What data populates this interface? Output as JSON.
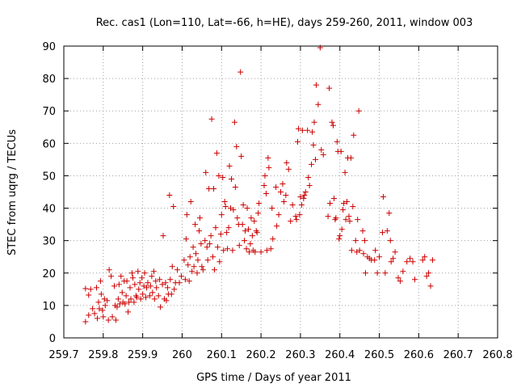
{
  "chart_data": {
    "type": "scatter",
    "title": "Rec. cas1 (Lon=110, Lat=-66, h=HE), days 259-260, 2011, window 003",
    "xlabel": "GPS time / Days of year 2011",
    "ylabel": "STEC from uqrg / TECUs",
    "xlim": [
      259.7,
      260.8
    ],
    "ylim": [
      0,
      90
    ],
    "xticks": [
      "259.7",
      "259.8",
      "259.9",
      "260",
      "260.1",
      "260.2",
      "260.3",
      "260.4",
      "260.5",
      "260.6",
      "260.7",
      "260.8"
    ],
    "yticks": [
      "0",
      "10",
      "20",
      "30",
      "40",
      "50",
      "60",
      "70",
      "80",
      "90"
    ],
    "grid": true,
    "marker": "plus",
    "color": "#cc0000",
    "points": [
      [
        259.755,
        15.2
      ],
      [
        259.755,
        5.0
      ],
      [
        259.763,
        13.2
      ],
      [
        259.763,
        7.0
      ],
      [
        259.768,
        15.0
      ],
      [
        259.773,
        9.0
      ],
      [
        259.778,
        7.5
      ],
      [
        259.783,
        15.5
      ],
      [
        259.785,
        6.0
      ],
      [
        259.788,
        11.0
      ],
      [
        259.79,
        9.0
      ],
      [
        259.793,
        17.5
      ],
      [
        259.795,
        13.5
      ],
      [
        259.798,
        8.5
      ],
      [
        259.8,
        6.5
      ],
      [
        259.803,
        12.0
      ],
      [
        259.805,
        10.0
      ],
      [
        259.81,
        11.5
      ],
      [
        259.813,
        5.5
      ],
      [
        259.815,
        21.0
      ],
      [
        259.82,
        19.0
      ],
      [
        259.823,
        6.5
      ],
      [
        259.828,
        16.0
      ],
      [
        259.83,
        10.0
      ],
      [
        259.832,
        5.5
      ],
      [
        259.835,
        9.5
      ],
      [
        259.838,
        12.0
      ],
      [
        259.84,
        16.5
      ],
      [
        259.842,
        10.5
      ],
      [
        259.845,
        19.0
      ],
      [
        259.848,
        14.0
      ],
      [
        259.85,
        11.0
      ],
      [
        259.853,
        17.5
      ],
      [
        259.855,
        10.5
      ],
      [
        259.858,
        13.0
      ],
      [
        259.86,
        17.5
      ],
      [
        259.863,
        8.0
      ],
      [
        259.865,
        11.0
      ],
      [
        259.868,
        15.5
      ],
      [
        259.87,
        12.0
      ],
      [
        259.873,
        20.0
      ],
      [
        259.875,
        18.5
      ],
      [
        259.878,
        11.0
      ],
      [
        259.88,
        16.5
      ],
      [
        259.883,
        13.0
      ],
      [
        259.885,
        12.5
      ],
      [
        259.888,
        20.5
      ],
      [
        259.89,
        15.0
      ],
      [
        259.893,
        17.0
      ],
      [
        259.895,
        12.0
      ],
      [
        259.898,
        18.5
      ],
      [
        259.9,
        13.5
      ],
      [
        259.903,
        16.0
      ],
      [
        259.905,
        20.0
      ],
      [
        259.908,
        12.5
      ],
      [
        259.91,
        15.5
      ],
      [
        259.913,
        17.0
      ],
      [
        259.918,
        13.0
      ],
      [
        259.92,
        16.0
      ],
      [
        259.923,
        19.0
      ],
      [
        259.925,
        14.0
      ],
      [
        259.928,
        20.5
      ],
      [
        259.93,
        12.0
      ],
      [
        259.933,
        17.5
      ],
      [
        259.935,
        15.5
      ],
      [
        259.94,
        13.0
      ],
      [
        259.943,
        18.0
      ],
      [
        259.945,
        9.5
      ],
      [
        259.95,
        16.5
      ],
      [
        259.952,
        31.5
      ],
      [
        259.955,
        12.0
      ],
      [
        259.958,
        17.0
      ],
      [
        259.96,
        11.5
      ],
      [
        259.963,
        15.5
      ],
      [
        259.965,
        13.5
      ],
      [
        259.968,
        44.0
      ],
      [
        259.97,
        18.0
      ],
      [
        259.973,
        13.5
      ],
      [
        259.975,
        22.0
      ],
      [
        259.978,
        40.5
      ],
      [
        259.98,
        15.0
      ],
      [
        259.983,
        17.0
      ],
      [
        259.988,
        21.0
      ],
      [
        259.993,
        17.0
      ],
      [
        259.998,
        19.0
      ],
      [
        260.005,
        24.0
      ],
      [
        260.008,
        18.0
      ],
      [
        260.01,
        30.5
      ],
      [
        260.012,
        38.0
      ],
      [
        260.015,
        22.5
      ],
      [
        260.018,
        17.5
      ],
      [
        260.02,
        25.0
      ],
      [
        260.022,
        42.0
      ],
      [
        260.025,
        20.5
      ],
      [
        260.028,
        28.0
      ],
      [
        260.03,
        22.0
      ],
      [
        260.033,
        35.0
      ],
      [
        260.035,
        26.0
      ],
      [
        260.038,
        20.0
      ],
      [
        260.04,
        24.0
      ],
      [
        260.043,
        33.0
      ],
      [
        260.045,
        37.0
      ],
      [
        260.048,
        29.0
      ],
      [
        260.05,
        22.0
      ],
      [
        260.053,
        21.0
      ],
      [
        260.058,
        30.0
      ],
      [
        260.06,
        51.0
      ],
      [
        260.063,
        28.0
      ],
      [
        260.065,
        24.0
      ],
      [
        260.068,
        46.0
      ],
      [
        260.07,
        29.0
      ],
      [
        260.073,
        31.5
      ],
      [
        260.075,
        67.5
      ],
      [
        260.078,
        25.0
      ],
      [
        260.08,
        46.0
      ],
      [
        260.082,
        21.0
      ],
      [
        260.085,
        34.0
      ],
      [
        260.088,
        57.0
      ],
      [
        260.09,
        28.0
      ],
      [
        260.093,
        50.0
      ],
      [
        260.095,
        23.5
      ],
      [
        260.098,
        32.0
      ],
      [
        260.1,
        38.0
      ],
      [
        260.103,
        49.5
      ],
      [
        260.105,
        27.0
      ],
      [
        260.108,
        42.0
      ],
      [
        260.11,
        40.5
      ],
      [
        260.113,
        32.5
      ],
      [
        260.115,
        27.5
      ],
      [
        260.118,
        34.0
      ],
      [
        260.12,
        53.0
      ],
      [
        260.123,
        40.0
      ],
      [
        260.125,
        49.0
      ],
      [
        260.128,
        27.0
      ],
      [
        260.13,
        39.5
      ],
      [
        260.133,
        66.5
      ],
      [
        260.135,
        46.5
      ],
      [
        260.138,
        59.0
      ],
      [
        260.14,
        37.0
      ],
      [
        260.143,
        35.0
      ],
      [
        260.145,
        28.5
      ],
      [
        260.148,
        82.0
      ],
      [
        260.15,
        56.0
      ],
      [
        260.153,
        35.0
      ],
      [
        260.155,
        41.0
      ],
      [
        260.158,
        30.0
      ],
      [
        260.16,
        33.0
      ],
      [
        260.163,
        27.5
      ],
      [
        260.165,
        40.0
      ],
      [
        260.168,
        33.5
      ],
      [
        260.17,
        26.5
      ],
      [
        260.173,
        29.0
      ],
      [
        260.175,
        37.0
      ],
      [
        260.178,
        31.5
      ],
      [
        260.18,
        27.0
      ],
      [
        260.183,
        36.0
      ],
      [
        260.185,
        26.5
      ],
      [
        260.188,
        33.0
      ],
      [
        260.19,
        32.5
      ],
      [
        260.193,
        38.5
      ],
      [
        260.195,
        41.5
      ],
      [
        260.2,
        26.5
      ],
      [
        260.208,
        47.0
      ],
      [
        260.21,
        50.0
      ],
      [
        260.213,
        44.5
      ],
      [
        260.215,
        27.0
      ],
      [
        260.218,
        55.5
      ],
      [
        260.22,
        52.5
      ],
      [
        260.225,
        27.5
      ],
      [
        260.228,
        40.0
      ],
      [
        260.23,
        30.5
      ],
      [
        260.238,
        46.5
      ],
      [
        260.24,
        34.5
      ],
      [
        260.245,
        38.0
      ],
      [
        260.25,
        45.0
      ],
      [
        260.255,
        47.5
      ],
      [
        260.258,
        42.0
      ],
      [
        260.263,
        44.0
      ],
      [
        260.265,
        54.0
      ],
      [
        260.27,
        52.0
      ],
      [
        260.275,
        36.0
      ],
      [
        260.28,
        41.0
      ],
      [
        260.288,
        37.5
      ],
      [
        260.29,
        36.5
      ],
      [
        260.293,
        60.5
      ],
      [
        260.295,
        64.5
      ],
      [
        260.298,
        38.0
      ],
      [
        260.3,
        43.5
      ],
      [
        260.303,
        41.0
      ],
      [
        260.305,
        64.0
      ],
      [
        260.308,
        43.0
      ],
      [
        260.31,
        44.0
      ],
      [
        260.313,
        45.0
      ],
      [
        260.318,
        64.0
      ],
      [
        260.32,
        49.5
      ],
      [
        260.323,
        47.0
      ],
      [
        260.328,
        53.5
      ],
      [
        260.33,
        63.5
      ],
      [
        260.333,
        59.5
      ],
      [
        260.335,
        66.5
      ],
      [
        260.338,
        55.0
      ],
      [
        260.34,
        78.0
      ],
      [
        260.345,
        72.0
      ],
      [
        260.35,
        89.5
      ],
      [
        260.353,
        58.0
      ],
      [
        260.358,
        56.5
      ],
      [
        260.37,
        37.5
      ],
      [
        260.373,
        77.0
      ],
      [
        260.375,
        41.5
      ],
      [
        260.38,
        66.5
      ],
      [
        260.383,
        65.5
      ],
      [
        260.385,
        43.0
      ],
      [
        260.388,
        36.5
      ],
      [
        260.39,
        37.0
      ],
      [
        260.393,
        60.5
      ],
      [
        260.395,
        57.5
      ],
      [
        260.398,
        30.5
      ],
      [
        260.4,
        31.5
      ],
      [
        260.403,
        57.5
      ],
      [
        260.405,
        33.5
      ],
      [
        260.408,
        39.5
      ],
      [
        260.41,
        41.5
      ],
      [
        260.413,
        51.0
      ],
      [
        260.415,
        36.5
      ],
      [
        260.418,
        42.0
      ],
      [
        260.42,
        55.5
      ],
      [
        260.423,
        37.5
      ],
      [
        260.425,
        36.0
      ],
      [
        260.428,
        55.5
      ],
      [
        260.43,
        27.0
      ],
      [
        260.433,
        40.5
      ],
      [
        260.435,
        62.5
      ],
      [
        260.44,
        30.0
      ],
      [
        260.443,
        26.5
      ],
      [
        260.445,
        36.5
      ],
      [
        260.448,
        70.0
      ],
      [
        260.45,
        27.0
      ],
      [
        260.458,
        33.0
      ],
      [
        260.46,
        26.0
      ],
      [
        260.463,
        30.0
      ],
      [
        260.465,
        20.0
      ],
      [
        260.47,
        25.0
      ],
      [
        260.475,
        24.5
      ],
      [
        260.48,
        24.0
      ],
      [
        260.488,
        24.0
      ],
      [
        260.49,
        27.0
      ],
      [
        260.495,
        20.0
      ],
      [
        260.5,
        25.0
      ],
      [
        260.508,
        32.5
      ],
      [
        260.51,
        43.5
      ],
      [
        260.515,
        20.0
      ],
      [
        260.52,
        33.0
      ],
      [
        260.525,
        38.5
      ],
      [
        260.528,
        30.0
      ],
      [
        260.53,
        23.5
      ],
      [
        260.535,
        24.5
      ],
      [
        260.54,
        26.5
      ],
      [
        260.548,
        18.5
      ],
      [
        260.553,
        17.5
      ],
      [
        260.56,
        20.5
      ],
      [
        260.57,
        23.5
      ],
      [
        260.578,
        24.5
      ],
      [
        260.585,
        23.5
      ],
      [
        260.59,
        18.0
      ],
      [
        260.61,
        24.0
      ],
      [
        260.615,
        25.0
      ],
      [
        260.62,
        19.0
      ],
      [
        260.625,
        20.0
      ],
      [
        260.63,
        16.0
      ],
      [
        260.635,
        24.0
      ]
    ]
  }
}
